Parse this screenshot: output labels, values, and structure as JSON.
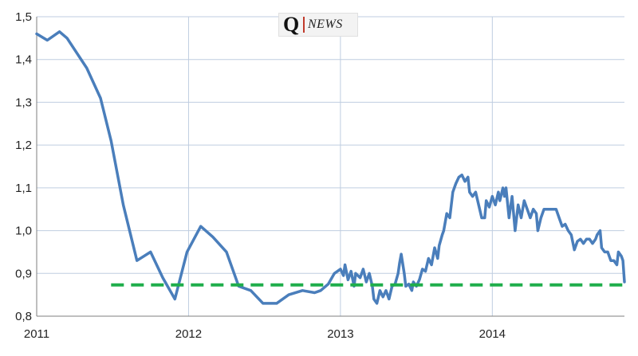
{
  "logo": {
    "letter": "Q",
    "text": "NEWS"
  },
  "chart_data": {
    "type": "line",
    "title": "",
    "xlabel": "",
    "ylabel": "",
    "xlim": [
      2011.0,
      2014.87
    ],
    "ylim": [
      0.8,
      1.5
    ],
    "x_ticks": [
      "2011",
      "2012",
      "2013",
      "2014"
    ],
    "x_tick_values": [
      2011,
      2012,
      2013,
      2014
    ],
    "y_ticks": [
      "0,8",
      "0,9",
      "1,0",
      "1,1",
      "1,2",
      "1,3",
      "1,4",
      "1,5"
    ],
    "y_tick_values": [
      0.8,
      0.9,
      1.0,
      1.1,
      1.2,
      1.3,
      1.4,
      1.5
    ],
    "grid": true,
    "colors": {
      "series": "#4a7ebb",
      "reference": "#1fae4b",
      "grid": "#bfcde0",
      "axis": "#7f7f7f"
    },
    "series": [
      {
        "style": "solid",
        "points": [
          [
            2011.0,
            1.46
          ],
          [
            2011.07,
            1.445
          ],
          [
            2011.15,
            1.465
          ],
          [
            2011.2,
            1.45
          ],
          [
            2011.33,
            1.38
          ],
          [
            2011.42,
            1.31
          ],
          [
            2011.49,
            1.21
          ],
          [
            2011.57,
            1.06
          ],
          [
            2011.66,
            0.93
          ],
          [
            2011.75,
            0.95
          ],
          [
            2011.83,
            0.89
          ],
          [
            2011.91,
            0.84
          ],
          [
            2011.99,
            0.95
          ],
          [
            2012.08,
            1.01
          ],
          [
            2012.16,
            0.985
          ],
          [
            2012.25,
            0.95
          ],
          [
            2012.33,
            0.87
          ],
          [
            2012.41,
            0.86
          ],
          [
            2012.49,
            0.83
          ],
          [
            2012.58,
            0.83
          ],
          [
            2012.66,
            0.85
          ],
          [
            2012.75,
            0.86
          ],
          [
            2012.83,
            0.855
          ],
          [
            2012.87,
            0.86
          ],
          [
            2012.92,
            0.875
          ],
          [
            2012.96,
            0.9
          ],
          [
            2013.0,
            0.91
          ],
          [
            2013.02,
            0.895
          ],
          [
            2013.03,
            0.92
          ],
          [
            2013.05,
            0.885
          ],
          [
            2013.07,
            0.905
          ],
          [
            2013.09,
            0.87
          ],
          [
            2013.1,
            0.9
          ],
          [
            2013.13,
            0.89
          ],
          [
            2013.15,
            0.91
          ],
          [
            2013.17,
            0.88
          ],
          [
            2013.19,
            0.9
          ],
          [
            2013.21,
            0.87
          ],
          [
            2013.22,
            0.84
          ],
          [
            2013.24,
            0.83
          ],
          [
            2013.26,
            0.86
          ],
          [
            2013.28,
            0.845
          ],
          [
            2013.3,
            0.86
          ],
          [
            2013.32,
            0.84
          ],
          [
            2013.34,
            0.87
          ],
          [
            2013.36,
            0.875
          ],
          [
            2013.38,
            0.9
          ],
          [
            2013.39,
            0.925
          ],
          [
            2013.4,
            0.945
          ],
          [
            2013.42,
            0.9
          ],
          [
            2013.43,
            0.87
          ],
          [
            2013.45,
            0.875
          ],
          [
            2013.47,
            0.86
          ],
          [
            2013.48,
            0.88
          ],
          [
            2013.5,
            0.87
          ],
          [
            2013.52,
            0.885
          ],
          [
            2013.54,
            0.91
          ],
          [
            2013.56,
            0.905
          ],
          [
            2013.58,
            0.935
          ],
          [
            2013.6,
            0.92
          ],
          [
            2013.62,
            0.96
          ],
          [
            2013.64,
            0.935
          ],
          [
            2013.65,
            0.965
          ],
          [
            2013.67,
            0.99
          ],
          [
            2013.68,
            1.0
          ],
          [
            2013.7,
            1.04
          ],
          [
            2013.72,
            1.03
          ],
          [
            2013.74,
            1.09
          ],
          [
            2013.76,
            1.11
          ],
          [
            2013.78,
            1.125
          ],
          [
            2013.8,
            1.13
          ],
          [
            2013.82,
            1.115
          ],
          [
            2013.84,
            1.125
          ],
          [
            2013.85,
            1.09
          ],
          [
            2013.87,
            1.08
          ],
          [
            2013.89,
            1.09
          ],
          [
            2013.91,
            1.06
          ],
          [
            2013.93,
            1.03
          ],
          [
            2013.95,
            1.03
          ],
          [
            2013.96,
            1.07
          ],
          [
            2013.98,
            1.055
          ],
          [
            2014.0,
            1.08
          ],
          [
            2014.02,
            1.06
          ],
          [
            2014.04,
            1.09
          ],
          [
            2014.05,
            1.07
          ],
          [
            2014.07,
            1.1
          ],
          [
            2014.08,
            1.08
          ],
          [
            2014.09,
            1.1
          ],
          [
            2014.11,
            1.03
          ],
          [
            2014.13,
            1.08
          ],
          [
            2014.15,
            1.0
          ],
          [
            2014.17,
            1.06
          ],
          [
            2014.19,
            1.03
          ],
          [
            2014.21,
            1.07
          ],
          [
            2014.23,
            1.05
          ],
          [
            2014.25,
            1.03
          ],
          [
            2014.27,
            1.05
          ],
          [
            2014.29,
            1.04
          ],
          [
            2014.3,
            1.0
          ],
          [
            2014.32,
            1.03
          ],
          [
            2014.34,
            1.05
          ],
          [
            2014.38,
            1.05
          ],
          [
            2014.42,
            1.05
          ],
          [
            2014.44,
            1.03
          ],
          [
            2014.46,
            1.01
          ],
          [
            2014.48,
            1.015
          ],
          [
            2014.5,
            1.0
          ],
          [
            2014.52,
            0.99
          ],
          [
            2014.54,
            0.955
          ],
          [
            2014.56,
            0.975
          ],
          [
            2014.58,
            0.98
          ],
          [
            2014.6,
            0.97
          ],
          [
            2014.62,
            0.98
          ],
          [
            2014.64,
            0.98
          ],
          [
            2014.66,
            0.97
          ],
          [
            2014.68,
            0.98
          ],
          [
            2014.69,
            0.99
          ],
          [
            2014.71,
            1.0
          ],
          [
            2014.72,
            0.96
          ],
          [
            2014.74,
            0.95
          ],
          [
            2014.76,
            0.95
          ],
          [
            2014.78,
            0.93
          ],
          [
            2014.8,
            0.93
          ],
          [
            2014.82,
            0.92
          ],
          [
            2014.83,
            0.95
          ],
          [
            2014.85,
            0.94
          ],
          [
            2014.86,
            0.93
          ],
          [
            2014.87,
            0.88
          ]
        ]
      },
      {
        "style": "dashed",
        "points": [
          [
            2011.49,
            0.873
          ],
          [
            2014.87,
            0.873
          ]
        ]
      }
    ]
  }
}
